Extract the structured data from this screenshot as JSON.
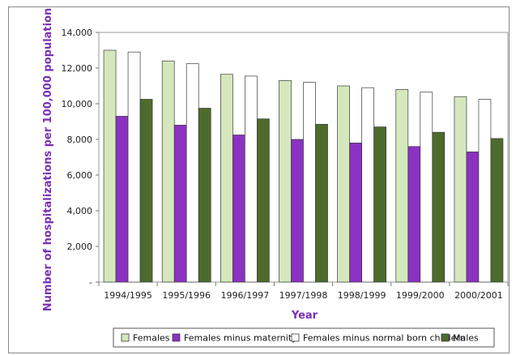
{
  "chart_data": {
    "type": "bar",
    "xlabel": "Year",
    "ylabel": "Number of hospitalizations per 100,000 population",
    "ylim": [
      0,
      14000
    ],
    "yticks": [
      0,
      2000,
      4000,
      6000,
      8000,
      10000,
      12000,
      14000
    ],
    "ytick_labels": [
      "-",
      "2,000",
      "4,000",
      "6,000",
      "8,000",
      "10,000",
      "12,000",
      "14,000"
    ],
    "grid": false,
    "legend_position": "bottom",
    "categories": [
      "1994/1995",
      "1995/1996",
      "1996/1997",
      "1997/1998",
      "1998/1999",
      "1999/2000",
      "2000/2001"
    ],
    "series": [
      {
        "name": "Females",
        "color": "#d5e8bd",
        "values": [
          13000,
          12400,
          11650,
          11300,
          11000,
          10800,
          10400
        ]
      },
      {
        "name": "Females minus maternity",
        "color": "#8b32c2",
        "values": [
          9300,
          8800,
          8250,
          8000,
          7800,
          7600,
          7300
        ]
      },
      {
        "name": "Females minus normal born childern",
        "color": "#ffffff",
        "values": [
          12900,
          12250,
          11550,
          11200,
          10900,
          10650,
          10250
        ]
      },
      {
        "name": "Males",
        "color": "#4d6b2c",
        "values": [
          10250,
          9750,
          9150,
          8850,
          8700,
          8400,
          8050
        ]
      }
    ]
  }
}
